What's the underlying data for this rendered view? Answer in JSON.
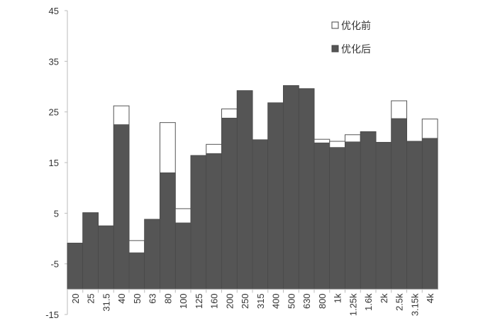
{
  "chart_data": {
    "type": "bar",
    "title": "",
    "xlabel": "",
    "ylabel": "",
    "ylim": [
      -15,
      45
    ],
    "yticks": [
      -15,
      -5,
      5,
      15,
      25,
      35,
      45
    ],
    "baseline": -10,
    "grid": false,
    "legend_position": "top-right",
    "categories": [
      "20",
      "25",
      "31.5",
      "40",
      "50",
      "63",
      "80",
      "100",
      "125",
      "160",
      "200",
      "250",
      "315",
      "400",
      "500",
      "630",
      "800",
      "1k",
      "1.25k",
      "1.6k",
      "2k",
      "2.5k",
      "3.15k",
      "4k"
    ],
    "series": [
      {
        "name": "优化前",
        "color": "#ffffff",
        "values": [
          -0.9,
          5.1,
          2.5,
          26.2,
          -0.4,
          3.8,
          22.9,
          5.9,
          16.4,
          18.6,
          25.6,
          29.2,
          19.5,
          26.8,
          30.2,
          29.6,
          19.6,
          19.2,
          20.5,
          21.1,
          19.0,
          27.2,
          19.2,
          23.6
        ]
      },
      {
        "name": "优化后",
        "color": "#555555",
        "values": [
          -0.9,
          5.1,
          2.5,
          22.5,
          -2.8,
          3.8,
          13.0,
          3.1,
          16.4,
          16.8,
          23.8,
          29.2,
          19.5,
          26.8,
          30.2,
          29.6,
          18.9,
          18.0,
          19.1,
          21.1,
          19.0,
          23.7,
          19.2,
          19.8
        ]
      }
    ]
  }
}
